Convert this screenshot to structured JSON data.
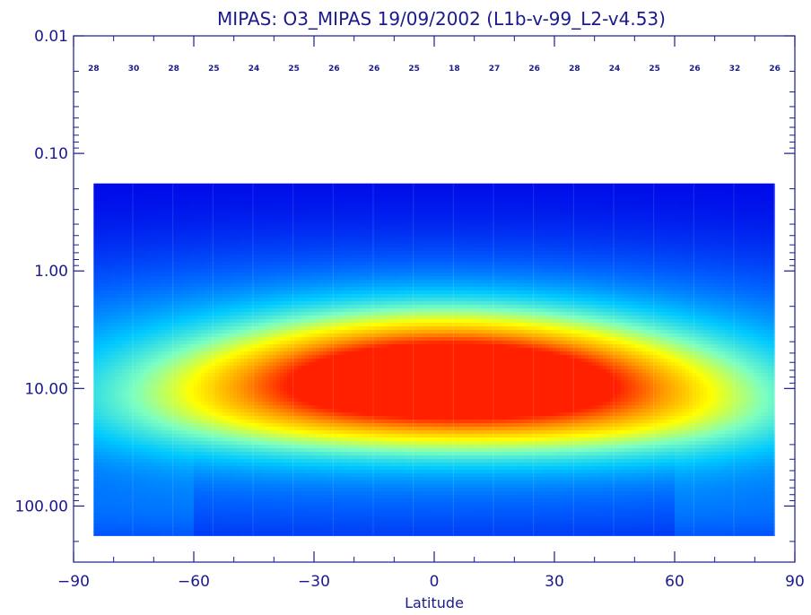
{
  "chart_data": {
    "type": "heatmap",
    "title": "MIPAS: O3_MIPAS 19/09/2002 (L1b-v-99_L2-v4.53)",
    "xlabel": "Latitude",
    "ylabel": "",
    "xlim": [
      -90,
      90
    ],
    "ylim": [
      0.01,
      300
    ],
    "y_scale": "log",
    "y_inverted": true,
    "x_ticks": [
      -90,
      -60,
      -30,
      0,
      30,
      60,
      90
    ],
    "x_tick_labels": [
      "−90",
      "−60",
      "−30",
      "0",
      "30",
      "60",
      "90"
    ],
    "y_ticks": [
      0.01,
      0.1,
      1,
      10,
      100
    ],
    "y_tick_labels": [
      "0.01",
      "0.10",
      "1.00",
      "10.00",
      "100.00"
    ],
    "data_extent": {
      "lat": [
        -85,
        85
      ],
      "pressure": [
        0.18,
        180
      ]
    },
    "colormap": [
      "#0000e6",
      "#0060ff",
      "#00c8ff",
      "#7dffc0",
      "#ffff00",
      "#ff9a00",
      "#ff2000"
    ],
    "field_description_peak": {
      "lat": 5,
      "pressure": 10
    },
    "profile_counts": {
      "lat": [
        -85,
        -75,
        -65,
        -55,
        -45,
        -35,
        -25,
        -15,
        -5,
        5,
        15,
        25,
        35,
        45,
        55,
        65,
        75,
        85
      ],
      "counts": [
        28,
        30,
        28,
        25,
        24,
        25,
        26,
        26,
        25,
        18,
        27,
        26,
        28,
        24,
        25,
        26,
        32,
        26
      ]
    }
  }
}
